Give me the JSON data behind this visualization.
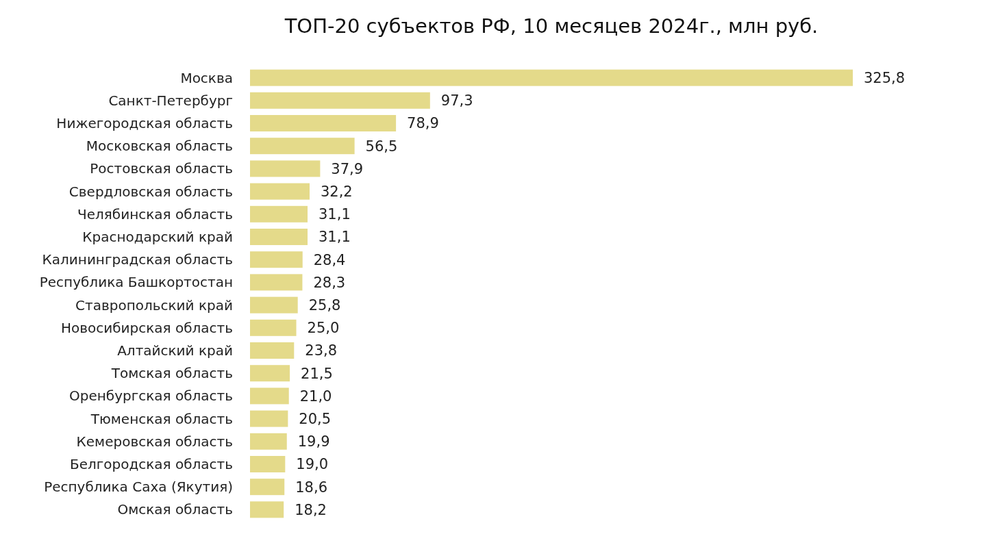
{
  "chart_data": {
    "type": "bar",
    "orientation": "horizontal",
    "title": "ТОП-20 субъектов РФ, 10 месяцев 2024г., млн руб.",
    "categories": [
      "Москва",
      "Санкт-Петербург",
      "Нижегородская область",
      "Московская область",
      "Ростовская область",
      "Свердловская область",
      "Челябинская область",
      "Краснодарский край",
      "Калининградская область",
      "Республика Башкортостан",
      "Ставропольский край",
      "Новосибирская область",
      "Алтайский край",
      "Томская область",
      "Оренбургская область",
      "Тюменская область",
      "Кемеровская область",
      "Белгородская область",
      "Республика Саха (Якутия)",
      "Омская область"
    ],
    "values": [
      325.8,
      97.3,
      78.9,
      56.5,
      37.9,
      32.2,
      31.1,
      31.1,
      28.4,
      28.3,
      25.8,
      25.0,
      23.8,
      21.5,
      21.0,
      20.5,
      19.9,
      19.0,
      18.6,
      18.2
    ],
    "value_labels": [
      "325,8",
      "97,3",
      "78,9",
      "56,5",
      "37,9",
      "32,2",
      "31,1",
      "31,1",
      "28,4",
      "28,3",
      "25,8",
      "25,0",
      "23,8",
      "21,5",
      "21,0",
      "20,5",
      "19,9",
      "19,0",
      "18,6",
      "18,2"
    ],
    "color": "#e4da8a"
  }
}
